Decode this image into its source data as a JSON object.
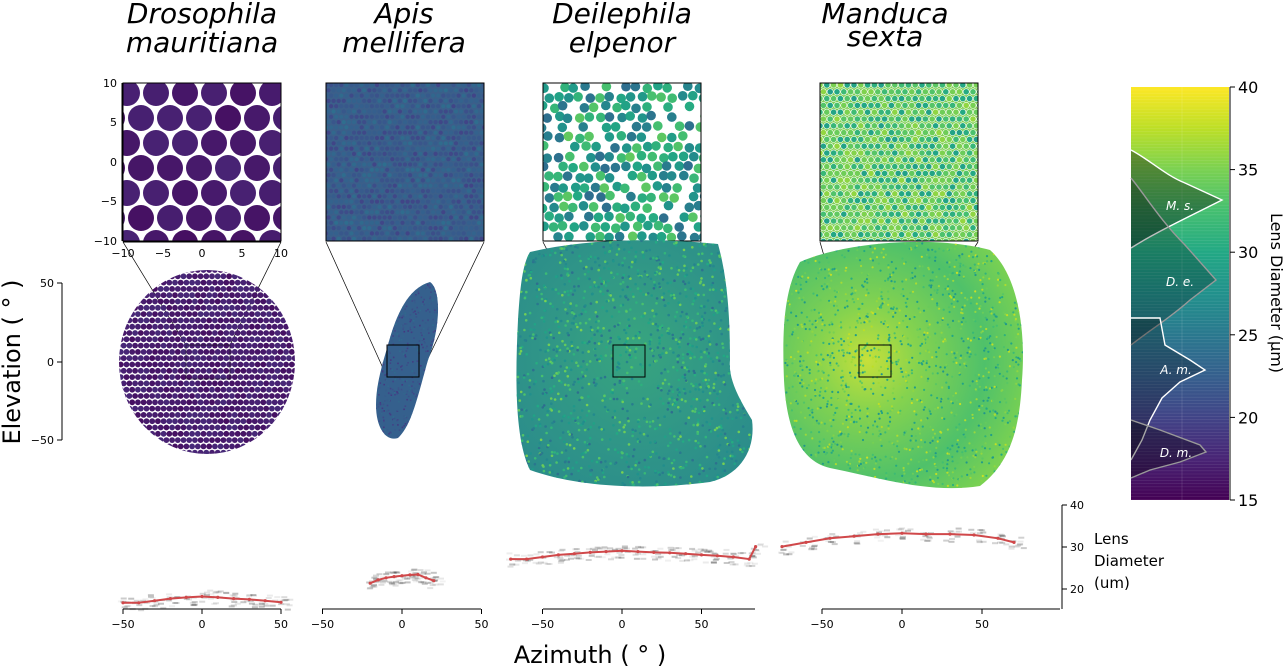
{
  "species": [
    {
      "key": "dm",
      "line1": "Drosophila",
      "line2": "mauritiana"
    },
    {
      "key": "am",
      "line1": "Apis",
      "line2": "mellifera"
    },
    {
      "key": "de",
      "line1": "Deilephila",
      "line2": "elpenor"
    },
    {
      "key": "ms",
      "line1": "Manduca",
      "line2": "sexta"
    }
  ],
  "axes": {
    "elevation_label": "Elevation ( ° )",
    "azimuth_label": "Azimuth ( ° )",
    "elevation_ticks": [
      "50",
      "0",
      "−50"
    ],
    "azimuth_ticks": [
      "−50",
      "0",
      "50"
    ],
    "inset_ticks": [
      "10",
      "5",
      "0",
      "−5",
      "−10"
    ],
    "inset_xticks": [
      "−10",
      "−5",
      "0",
      "5",
      "10"
    ],
    "lens_ticks": [
      "40",
      "30",
      "20"
    ],
    "lens_label_lines": [
      "Lens",
      "Diameter",
      "(um)"
    ]
  },
  "colorbar": {
    "label": "Lens Diameter (µm)",
    "ticks": [
      "40",
      "35",
      "30",
      "25",
      "20",
      "15"
    ],
    "range": [
      15,
      40
    ],
    "colormap": "viridis",
    "hist_labels": [
      "M. s.",
      "D. e.",
      "A. m.",
      "D. m."
    ]
  },
  "chart_data": [
    {
      "type": "scatter",
      "panel": "inset",
      "species": "Drosophila mauritiana",
      "xlim": [
        -10,
        10
      ],
      "ylim": [
        -10,
        10
      ],
      "lens_diameter_um": 16.5
    },
    {
      "type": "scatter",
      "panel": "eye-map",
      "xlabel": "Azimuth ( ° )",
      "ylabel": "Elevation ( ° )",
      "ylim": [
        -50,
        50
      ],
      "mean_lens_diameter_um": {
        "Drosophila mauritiana": 16.5,
        "Apis mellifera": 21.5,
        "Deilephila elpenor": 28.5,
        "Manduca sexta": 32.5
      }
    },
    {
      "type": "line",
      "panel": "lens-diameter-vs-azimuth",
      "xlabel": "Azimuth ( ° )",
      "ylabel": "Lens Diameter (um)",
      "ylim": [
        15,
        40
      ],
      "series": [
        {
          "name": "Drosophila mauritiana",
          "x": [
            -50,
            -40,
            -30,
            -20,
            -10,
            0,
            10,
            20,
            30,
            40,
            50
          ],
          "y": [
            16.5,
            16.5,
            17.0,
            17.5,
            17.8,
            18.0,
            17.8,
            17.5,
            17.3,
            17.0,
            16.6
          ]
        },
        {
          "name": "Apis mellifera",
          "x": [
            -20,
            -15,
            -10,
            -5,
            0,
            5,
            10,
            15,
            20
          ],
          "y": [
            21.2,
            22.0,
            22.5,
            22.8,
            23.0,
            23.2,
            23.3,
            22.5,
            21.8
          ]
        },
        {
          "name": "Deilephila elpenor",
          "x": [
            -70,
            -60,
            -50,
            -40,
            -30,
            -20,
            -10,
            0,
            10,
            20,
            30,
            40,
            50,
            60,
            70,
            80,
            84
          ],
          "y": [
            27.0,
            27.0,
            27.5,
            28.0,
            28.3,
            28.6,
            28.8,
            29.0,
            28.8,
            28.6,
            28.5,
            28.3,
            28.0,
            27.8,
            27.5,
            27.0,
            30.0
          ]
        },
        {
          "name": "Manduca sexta",
          "x": [
            -75,
            -60,
            -45,
            -30,
            -15,
            0,
            15,
            30,
            45,
            60,
            70
          ],
          "y": [
            30.0,
            31.0,
            32.0,
            32.5,
            33.0,
            33.2,
            33.0,
            33.0,
            32.8,
            32.0,
            31.0
          ]
        }
      ]
    }
  ]
}
